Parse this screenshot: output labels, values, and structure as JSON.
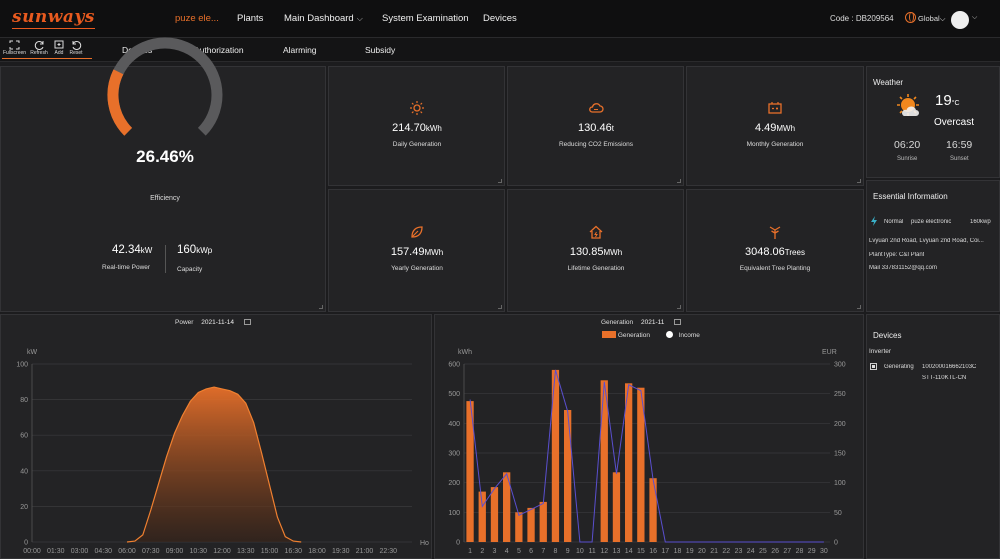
{
  "brand": {
    "logo_text": "sunways",
    "accent": "#e8702a"
  },
  "topnav": {
    "plant_selector": "puze ele...",
    "items": [
      {
        "label": "Plants"
      },
      {
        "label": "Main Dashboard"
      },
      {
        "label": "System Examination"
      },
      {
        "label": "Devices"
      }
    ],
    "code_label": "Code :",
    "code_value": "DB209564",
    "global_label": "Global"
  },
  "toolbar": {
    "fullscreen": "Fullscreen",
    "refresh": "Refresh",
    "add": "Add",
    "reset": "Reset"
  },
  "subtabs": [
    {
      "label": "Devices"
    },
    {
      "label": "Authorization"
    },
    {
      "label": "Alarming"
    },
    {
      "label": "Subsidy"
    }
  ],
  "efficiency": {
    "value_text": "26.46%",
    "value": 26.46,
    "label": "Efficiency",
    "realtime_power": "42.34",
    "realtime_power_unit": "kW",
    "realtime_power_label": "Real-time Power",
    "capacity": "160",
    "capacity_unit": "kWp",
    "capacity_label": "Capacity"
  },
  "stats": [
    {
      "icon": "sun-power-icon",
      "value": "214.70",
      "unit": "kWh",
      "label": "Daily Generation"
    },
    {
      "icon": "cloud-co2-icon",
      "value": "130.46",
      "unit": "t",
      "label": "Reducing CO2 Emissions"
    },
    {
      "icon": "battery-icon",
      "value": "4.49",
      "unit": "MWh",
      "label": "Monthly Generation"
    },
    {
      "icon": "leaf-icon",
      "value": "157.49",
      "unit": "MWh",
      "label": "Yearly Generation"
    },
    {
      "icon": "house-icon",
      "value": "130.85",
      "unit": "MWh",
      "label": "Lifetime Generation"
    },
    {
      "icon": "tree-icon",
      "value": "3048.06",
      "unit": "Trees",
      "label": "Equivalent Tree Planting"
    }
  ],
  "weather": {
    "title": "Weather",
    "temp": "19",
    "temp_unit": "°C",
    "condition": "Overcast",
    "sunrise_time": "06:20",
    "sunrise_label": "Sunrise",
    "sunset_time": "16:59",
    "sunset_label": "Sunset"
  },
  "essential": {
    "title": "Essential Information",
    "status": "Normal",
    "name": "puze electronic",
    "capacity": "160kwp",
    "address": "Lvyuan 2nd Road, Lvyuan 2nd Road, Coi...",
    "plant_type": "PlantType: C&I Plant",
    "mail": "Mail 337831152@qq.com"
  },
  "devices_panel": {
    "title": "Devices",
    "category": "Inverter",
    "status": "Generating",
    "serial": "100200016662103C",
    "model": "STT-110KTL-CN"
  },
  "power_chart": {
    "label": "Power",
    "date": "2021-11-14",
    "unit": "kW",
    "x_unit": "Ho",
    "yticks": [
      "0",
      "20",
      "40",
      "60",
      "80",
      "100"
    ],
    "xticks": [
      "00:00",
      "01:30",
      "03:00",
      "04:30",
      "06:00",
      "07:30",
      "09:00",
      "10:30",
      "12:00",
      "13:30",
      "15:00",
      "16:30",
      "18:00",
      "19:30",
      "21:00",
      "22:30"
    ]
  },
  "gen_chart": {
    "label": "Generation",
    "date": "2021-11",
    "legend_generation": "Generation",
    "legend_income": "Income",
    "left_unit": "kWh",
    "right_unit": "EUR",
    "yticks_left": [
      "0",
      "100",
      "200",
      "300",
      "400",
      "500",
      "600"
    ],
    "yticks_right": [
      "0",
      "50",
      "100",
      "150",
      "200",
      "250",
      "300"
    ]
  },
  "chart_data": [
    {
      "type": "area",
      "title": "Power",
      "ylabel": "kW",
      "ylim": [
        0,
        100
      ],
      "x": [
        "06:00",
        "06:30",
        "07:00",
        "07:30",
        "08:00",
        "08:30",
        "09:00",
        "09:30",
        "10:00",
        "10:30",
        "11:00",
        "11:30",
        "12:00",
        "12:30",
        "13:00",
        "13:30",
        "14:00",
        "14:30",
        "15:00",
        "15:30",
        "16:00",
        "16:30",
        "17:00"
      ],
      "values": [
        0,
        0.5,
        4,
        18,
        33,
        48,
        61,
        71,
        79,
        84,
        86,
        87,
        86,
        85,
        83,
        78,
        67,
        50,
        32,
        14,
        3,
        0.5,
        0
      ],
      "grid": true,
      "color": "#e8702a"
    },
    {
      "type": "bar",
      "title": "Generation",
      "categories": [
        "1",
        "2",
        "3",
        "4",
        "5",
        "6",
        "7",
        "8",
        "9",
        "10",
        "11",
        "12",
        "13",
        "14",
        "15",
        "16",
        "17",
        "18",
        "19",
        "20",
        "21",
        "22",
        "23",
        "24",
        "25",
        "26",
        "27",
        "28",
        "29",
        "30"
      ],
      "series": [
        {
          "name": "Generation",
          "axis": "left",
          "unit": "kWh",
          "color": "#e8702a",
          "values": [
            475,
            170,
            185,
            235,
            100,
            115,
            135,
            580,
            445,
            0,
            0,
            545,
            235,
            535,
            520,
            215,
            0,
            0,
            0,
            0,
            0,
            0,
            0,
            0,
            0,
            0,
            0,
            0,
            0,
            0
          ]
        },
        {
          "name": "Income",
          "axis": "right",
          "unit": "EUR",
          "color": "#5a4fcf",
          "values": [
            240,
            60,
            90,
            115,
            45,
            55,
            65,
            290,
            220,
            0,
            0,
            270,
            115,
            265,
            255,
            105,
            0,
            0,
            0,
            0,
            0,
            0,
            0,
            0,
            0,
            0,
            0,
            0,
            0,
            0
          ]
        }
      ],
      "ylim_left": [
        0,
        600
      ],
      "ylim_right": [
        0,
        300
      ],
      "legend": "top-center",
      "grid": true
    }
  ]
}
